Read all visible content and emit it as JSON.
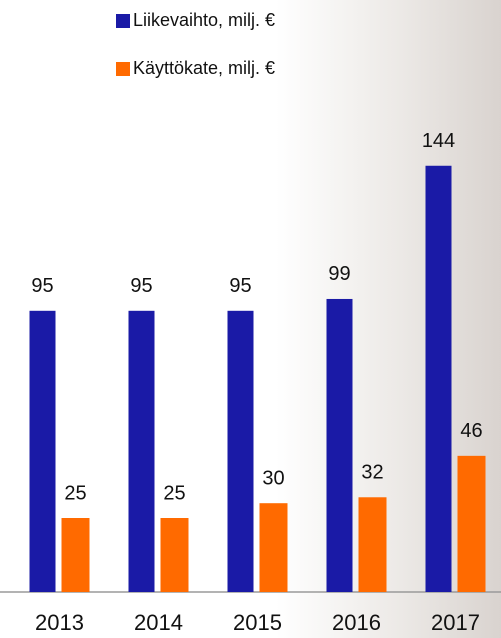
{
  "chart_data": {
    "type": "bar",
    "categories": [
      "2013",
      "2014",
      "2015",
      "2016",
      "2017"
    ],
    "series": [
      {
        "name": "Liikevaihto, milj. €",
        "color": "#1a1aa6",
        "values": [
          95,
          95,
          95,
          99,
          144
        ]
      },
      {
        "name": "Käyttökate, milj. €",
        "color": "#ff6a00",
        "values": [
          25,
          25,
          30,
          32,
          46
        ]
      }
    ]
  }
}
